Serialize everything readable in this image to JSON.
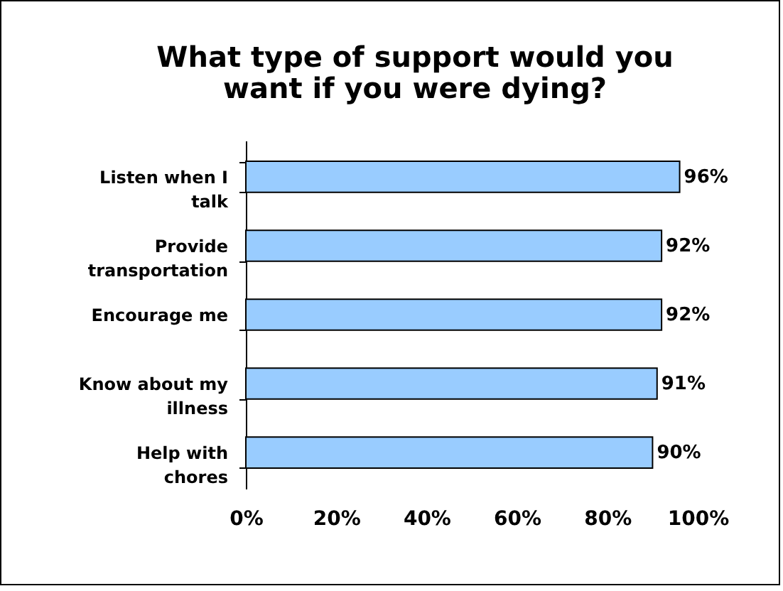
{
  "chart_data": {
    "type": "bar",
    "orientation": "horizontal",
    "title": "What type of support would you want if you were dying?",
    "categories": [
      "Listen when I talk",
      "Provide transportation",
      "Encourage me",
      "Know about my illness",
      "Help with chores"
    ],
    "values": [
      96,
      92,
      92,
      91,
      90
    ],
    "value_labels": [
      "96%",
      "92%",
      "92%",
      "91%",
      "90%"
    ],
    "color": "#99ccff",
    "xlim": [
      0,
      100
    ],
    "xticks": [
      {
        "value": 0,
        "label": "0%"
      },
      {
        "value": 20,
        "label": "20%"
      },
      {
        "value": 40,
        "label": "40%"
      },
      {
        "value": 60,
        "label": "60%"
      },
      {
        "value": 80,
        "label": "80%"
      },
      {
        "value": 100,
        "label": "100%"
      }
    ],
    "grid": false
  }
}
